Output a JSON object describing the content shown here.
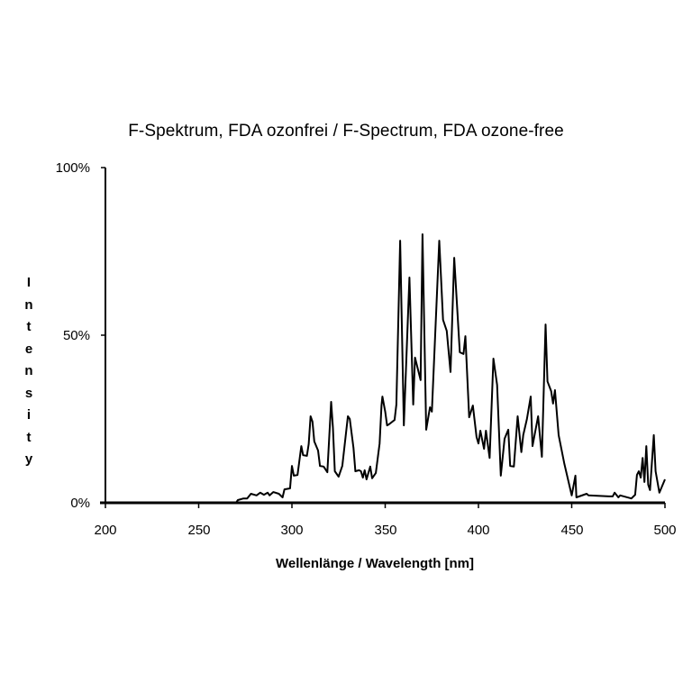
{
  "chart_data": {
    "type": "line",
    "title": "F-Spektrum, FDA ozonfrei / F-Spectrum, FDA ozone-free",
    "xlabel": "Wellenlänge / Wavelength  [nm]",
    "ylabel": "Intensity",
    "xlim": [
      200,
      500
    ],
    "ylim": [
      0,
      100
    ],
    "x_ticks": [
      "200",
      "250",
      "300",
      "350",
      "400",
      "450",
      "500"
    ],
    "y_ticks": [
      "0%",
      "50%",
      "100%"
    ],
    "grid": false,
    "legend": null,
    "series": [
      {
        "name": "F-Spectrum, FDA ozone-free",
        "color": "#000000",
        "points": [
          [
            200,
            0
          ],
          [
            270,
            0
          ],
          [
            271,
            0.8
          ],
          [
            274,
            1.3
          ],
          [
            276,
            1.3
          ],
          [
            278,
            2.7
          ],
          [
            281,
            2.2
          ],
          [
            283,
            3.0
          ],
          [
            285,
            2.4
          ],
          [
            287,
            3.0
          ],
          [
            288,
            2.2
          ],
          [
            290,
            3.2
          ],
          [
            293,
            2.7
          ],
          [
            295,
            1.6
          ],
          [
            296,
            4.0
          ],
          [
            299,
            4.3
          ],
          [
            300,
            11.0
          ],
          [
            301,
            8.1
          ],
          [
            303,
            8.3
          ],
          [
            305,
            16.9
          ],
          [
            306,
            14.2
          ],
          [
            308,
            14.0
          ],
          [
            309,
            17.5
          ],
          [
            310,
            25.8
          ],
          [
            311,
            24.2
          ],
          [
            312,
            18.3
          ],
          [
            314,
            15.6
          ],
          [
            315,
            11.0
          ],
          [
            317,
            10.8
          ],
          [
            319,
            9.1
          ],
          [
            321,
            30.1
          ],
          [
            322,
            22.3
          ],
          [
            323,
            9.4
          ],
          [
            325,
            7.8
          ],
          [
            327,
            11.0
          ],
          [
            330,
            25.8
          ],
          [
            331,
            25.0
          ],
          [
            333,
            16.4
          ],
          [
            334,
            9.4
          ],
          [
            336,
            9.7
          ],
          [
            337,
            9.4
          ],
          [
            338,
            7.5
          ],
          [
            339,
            9.7
          ],
          [
            340,
            7.0
          ],
          [
            342,
            10.8
          ],
          [
            343,
            7.3
          ],
          [
            345,
            8.9
          ],
          [
            347,
            17.7
          ],
          [
            348,
            29.0
          ],
          [
            348.5,
            31.7
          ],
          [
            350,
            27.2
          ],
          [
            351,
            23.1
          ],
          [
            352,
            23.4
          ],
          [
            355,
            24.7
          ],
          [
            356,
            29.3
          ],
          [
            358,
            78.2
          ],
          [
            360,
            23.1
          ],
          [
            363,
            67.2
          ],
          [
            365,
            29.3
          ],
          [
            366,
            43.3
          ],
          [
            369,
            36.6
          ],
          [
            370,
            80.1
          ],
          [
            372,
            21.8
          ],
          [
            374,
            28.5
          ],
          [
            375,
            27.2
          ],
          [
            379,
            78.2
          ],
          [
            381,
            54.6
          ],
          [
            383,
            51.3
          ],
          [
            385,
            39.0
          ],
          [
            387,
            73.1
          ],
          [
            390,
            44.9
          ],
          [
            392,
            44.4
          ],
          [
            393,
            49.7
          ],
          [
            395,
            25.5
          ],
          [
            397,
            29.0
          ],
          [
            399,
            19.6
          ],
          [
            400,
            17.7
          ],
          [
            401,
            21.5
          ],
          [
            403,
            16.1
          ],
          [
            404,
            21.5
          ],
          [
            406,
            13.4
          ],
          [
            408,
            43.0
          ],
          [
            410,
            35.2
          ],
          [
            412,
            8.1
          ],
          [
            414,
            19.1
          ],
          [
            416,
            21.8
          ],
          [
            417,
            11.0
          ],
          [
            419,
            10.8
          ],
          [
            421,
            25.8
          ],
          [
            423,
            15.1
          ],
          [
            424,
            20.2
          ],
          [
            426,
            25.0
          ],
          [
            428,
            31.7
          ],
          [
            429,
            16.9
          ],
          [
            432,
            25.8
          ],
          [
            434,
            13.7
          ],
          [
            436,
            53.2
          ],
          [
            437,
            36.2
          ],
          [
            439,
            33.3
          ],
          [
            440,
            29.6
          ],
          [
            441,
            33.6
          ],
          [
            443,
            20.2
          ],
          [
            446,
            11.8
          ],
          [
            450,
            2.2
          ],
          [
            452,
            8.1
          ],
          [
            452.5,
            1.6
          ],
          [
            458,
            2.7
          ],
          [
            459,
            2.2
          ],
          [
            470,
            1.9
          ],
          [
            472,
            1.9
          ],
          [
            473,
            3.0
          ],
          [
            475,
            1.6
          ],
          [
            476,
            2.2
          ],
          [
            482,
            1.3
          ],
          [
            484,
            2.4
          ],
          [
            485,
            8.3
          ],
          [
            486,
            9.4
          ],
          [
            487,
            7.5
          ],
          [
            488,
            13.4
          ],
          [
            489,
            6.2
          ],
          [
            490,
            16.9
          ],
          [
            491,
            5.4
          ],
          [
            492,
            3.8
          ],
          [
            494,
            20.2
          ],
          [
            495,
            9.4
          ],
          [
            497,
            3.0
          ],
          [
            500,
            7.0
          ]
        ]
      }
    ]
  }
}
